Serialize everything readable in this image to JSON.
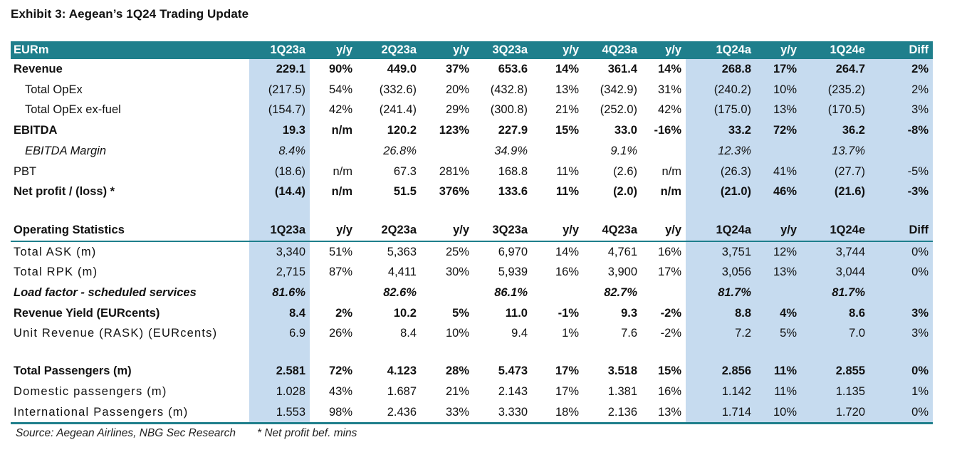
{
  "title": "Exhibit 3: Aegean’s 1Q24 Trading Update",
  "header": [
    "EURm",
    "1Q23a",
    "y/y",
    "2Q23a",
    "y/y",
    "3Q23a",
    "y/y",
    "4Q23a",
    "y/y",
    "1Q24a",
    "y/y",
    "1Q24e",
    "Diff"
  ],
  "financials": [
    {
      "label": "Revenue",
      "style": "bold",
      "cells": [
        "229.1",
        "90%",
        "449.0",
        "37%",
        "653.6",
        "14%",
        "361.4",
        "14%",
        "268.8",
        "17%",
        "264.7",
        "2%"
      ]
    },
    {
      "label": "Total OpEx",
      "style": "indent",
      "cells": [
        "(217.5)",
        "54%",
        "(332.6)",
        "20%",
        "(432.8)",
        "13%",
        "(342.9)",
        "31%",
        "(240.2)",
        "10%",
        "(235.2)",
        "2%"
      ]
    },
    {
      "label": "Total OpEx ex-fuel",
      "style": "indent",
      "cells": [
        "(154.7)",
        "42%",
        "(241.4)",
        "29%",
        "(300.8)",
        "21%",
        "(252.0)",
        "42%",
        "(175.0)",
        "13%",
        "(170.5)",
        "3%"
      ]
    },
    {
      "label": "EBITDA",
      "style": "bold",
      "cells": [
        "19.3",
        "n/m",
        "120.2",
        "123%",
        "227.9",
        "15%",
        "33.0",
        "-16%",
        "33.2",
        "72%",
        "36.2",
        "-8%"
      ]
    },
    {
      "label": "EBITDA Margin",
      "style": "italic-indent",
      "cells": [
        "8.4%",
        "",
        "26.8%",
        "",
        "34.9%",
        "",
        "9.1%",
        "",
        "12.3%",
        "",
        "13.7%",
        ""
      ]
    },
    {
      "label": "PBT",
      "style": "plain",
      "cells": [
        "(18.6)",
        "n/m",
        "67.3",
        "281%",
        "168.8",
        "11%",
        "(2.6)",
        "n/m",
        "(26.3)",
        "41%",
        "(27.7)",
        "-5%"
      ]
    },
    {
      "label": "Net profit / (loss) *",
      "style": "bold",
      "cells": [
        "(14.4)",
        "n/m",
        "51.5",
        "376%",
        "133.6",
        "11%",
        "(2.0)",
        "n/m",
        "(21.0)",
        "46%",
        "(21.6)",
        "-3%"
      ]
    }
  ],
  "ops_header": [
    "Operating Statistics",
    "1Q23a",
    "y/y",
    "2Q23a",
    "y/y",
    "3Q23a",
    "y/y",
    "4Q23a",
    "y/y",
    "1Q24a",
    "y/y",
    "1Q24e",
    "Diff"
  ],
  "operations": [
    {
      "label": "Total ASK (m)",
      "style": "plain",
      "cells": [
        "3,340",
        "51%",
        "5,363",
        "25%",
        "6,970",
        "14%",
        "4,761",
        "16%",
        "3,751",
        "12%",
        "3,744",
        "0%"
      ]
    },
    {
      "label": "Total RPK (m)",
      "style": "plain",
      "cells": [
        "2,715",
        "87%",
        "4,411",
        "30%",
        "5,939",
        "16%",
        "3,900",
        "17%",
        "3,056",
        "13%",
        "3,044",
        "0%"
      ]
    },
    {
      "label": "Load factor - scheduled services",
      "style": "bold-italic",
      "cells": [
        "81.6%",
        "",
        "82.6%",
        "",
        "86.1%",
        "",
        "82.7%",
        "",
        "81.7%",
        "",
        "81.7%",
        ""
      ]
    },
    {
      "label": "Revenue Yield (EURcents)",
      "style": "bold",
      "cells": [
        "8.4",
        "2%",
        "10.2",
        "5%",
        "11.0",
        "-1%",
        "9.3",
        "-2%",
        "8.8",
        "4%",
        "8.6",
        "3%"
      ]
    },
    {
      "label": "Unit Revenue (RASK) (EURcents)",
      "style": "plain",
      "cells": [
        "6.9",
        "26%",
        "8.4",
        "10%",
        "9.4",
        "1%",
        "7.6",
        "-2%",
        "7.2",
        "5%",
        "7.0",
        "3%"
      ]
    }
  ],
  "passengers": [
    {
      "label": "Total Passengers (m)",
      "style": "bold",
      "cells": [
        "2.581",
        "72%",
        "4.123",
        "28%",
        "5.473",
        "17%",
        "3.518",
        "15%",
        "2.856",
        "11%",
        "2.855",
        "0%"
      ]
    },
    {
      "label": "Domestic passengers (m)",
      "style": "plain",
      "cells": [
        "1.028",
        "43%",
        "1.687",
        "21%",
        "2.143",
        "17%",
        "1.381",
        "16%",
        "1.142",
        "11%",
        "1.135",
        "1%"
      ]
    },
    {
      "label": "International Passengers (m)",
      "style": "plain",
      "cells": [
        "1.553",
        "98%",
        "2.436",
        "33%",
        "3.330",
        "18%",
        "2.136",
        "13%",
        "1.714",
        "10%",
        "1.720",
        "0%"
      ]
    }
  ],
  "source": "Source: Aegean Airlines, NBG Sec Research",
  "footnote": "* Net profit bef. mins",
  "colors": {
    "header_bg": "#1f7f8c",
    "shade": "#c6dbef"
  }
}
